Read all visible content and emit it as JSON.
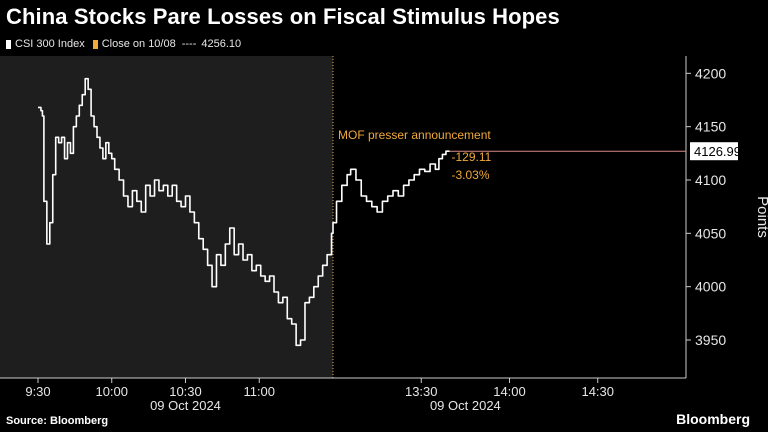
{
  "title": "China Stocks Pare Losses on Fiscal Stimulus Hopes",
  "legend": {
    "series_label": "CSI 300 Index",
    "close_label": "Close on 10/08",
    "close_dashes": "----",
    "close_value": "4256.10"
  },
  "colors": {
    "background": "#000000",
    "shaded_region": "#1e1e1e",
    "line": "#ffffff",
    "annotation": "#f0a93a",
    "close_marker": "#f0a93a",
    "value_box": "#ffffff"
  },
  "annotation_text": "MOF presser announcement",
  "change_points": "-129.11",
  "change_pct": "-3.03%",
  "last_value_label": "4126.99",
  "source": "Source: Bloomberg",
  "brand": "Bloomberg",
  "chart_data": {
    "type": "line",
    "ylabel": "Points",
    "ylim": [
      3920,
      4220
    ],
    "yticks": [
      3950,
      4000,
      4050,
      4100,
      4150,
      4200
    ],
    "session_gap_hours": [
      11.5,
      13.0
    ],
    "xticks": [
      {
        "t": 9.5,
        "label": "9:30"
      },
      {
        "t": 10.0,
        "label": "10:00"
      },
      {
        "t": 10.5,
        "label": "10:30"
      },
      {
        "t": 11.0,
        "label": "11:00"
      },
      {
        "t": 13.5,
        "label": "13:30"
      },
      {
        "t": 14.0,
        "label": "14:00"
      },
      {
        "t": 14.5,
        "label": "14:30"
      }
    ],
    "date_labels": [
      {
        "t": 10.5,
        "label": "09 Oct 2024"
      },
      {
        "t": 13.75,
        "label": "09 Oct 2024"
      }
    ],
    "series": [
      {
        "name": "CSI 300 Index",
        "x": [
          9.5,
          9.52,
          9.53,
          9.54,
          9.56,
          9.58,
          9.6,
          9.62,
          9.64,
          9.66,
          9.68,
          9.7,
          9.72,
          9.74,
          9.76,
          9.78,
          9.8,
          9.82,
          9.84,
          9.86,
          9.88,
          9.9,
          9.92,
          9.94,
          9.96,
          9.98,
          10.0,
          10.02,
          10.05,
          10.08,
          10.11,
          10.14,
          10.17,
          10.2,
          10.23,
          10.26,
          10.29,
          10.32,
          10.35,
          10.38,
          10.41,
          10.44,
          10.47,
          10.5,
          10.53,
          10.56,
          10.59,
          10.62,
          10.65,
          10.68,
          10.71,
          10.74,
          10.77,
          10.8,
          10.83,
          10.86,
          10.89,
          10.92,
          10.95,
          10.98,
          11.01,
          11.04,
          11.07,
          11.1,
          11.13,
          11.16,
          11.19,
          11.22,
          11.25,
          11.28,
          11.31,
          11.34,
          11.37,
          11.4,
          11.43,
          11.46,
          11.49,
          13.0,
          13.02,
          13.05,
          13.08,
          13.1,
          13.13,
          13.16,
          13.19,
          13.22,
          13.25,
          13.28,
          13.31,
          13.34,
          13.37,
          13.4,
          13.43,
          13.46,
          13.49,
          13.52,
          13.55,
          13.58,
          13.6,
          13.62,
          13.64,
          13.66
        ],
        "values": [
          4168,
          4165,
          4160,
          4080,
          4040,
          4060,
          4105,
          4140,
          4135,
          4140,
          4120,
          4135,
          4125,
          4150,
          4160,
          4170,
          4180,
          4195,
          4185,
          4160,
          4150,
          4140,
          4130,
          4120,
          4135,
          4125,
          4120,
          4110,
          4100,
          4085,
          4075,
          4090,
          4080,
          4070,
          4095,
          4085,
          4100,
          4090,
          4095,
          4085,
          4095,
          4080,
          4075,
          4085,
          4070,
          4060,
          4045,
          4035,
          4020,
          4000,
          4030,
          4020,
          4040,
          4055,
          4030,
          4040,
          4025,
          4030,
          4015,
          4020,
          4010,
          4005,
          4010,
          3995,
          3985,
          3990,
          3970,
          3965,
          3945,
          3950,
          3985,
          3990,
          4000,
          4010,
          4020,
          4030,
          4050,
          4060,
          4080,
          4095,
          4105,
          4110,
          4100,
          4085,
          4080,
          4075,
          4070,
          4080,
          4085,
          4090,
          4085,
          4095,
          4100,
          4105,
          4110,
          4108,
          4115,
          4110,
          4120,
          4124,
          4127,
          4127
        ]
      }
    ],
    "annotation": {
      "t": 13.0,
      "label": "MOF presser announcement"
    },
    "last_value": 4126.99,
    "previous_close": 4256.1
  }
}
